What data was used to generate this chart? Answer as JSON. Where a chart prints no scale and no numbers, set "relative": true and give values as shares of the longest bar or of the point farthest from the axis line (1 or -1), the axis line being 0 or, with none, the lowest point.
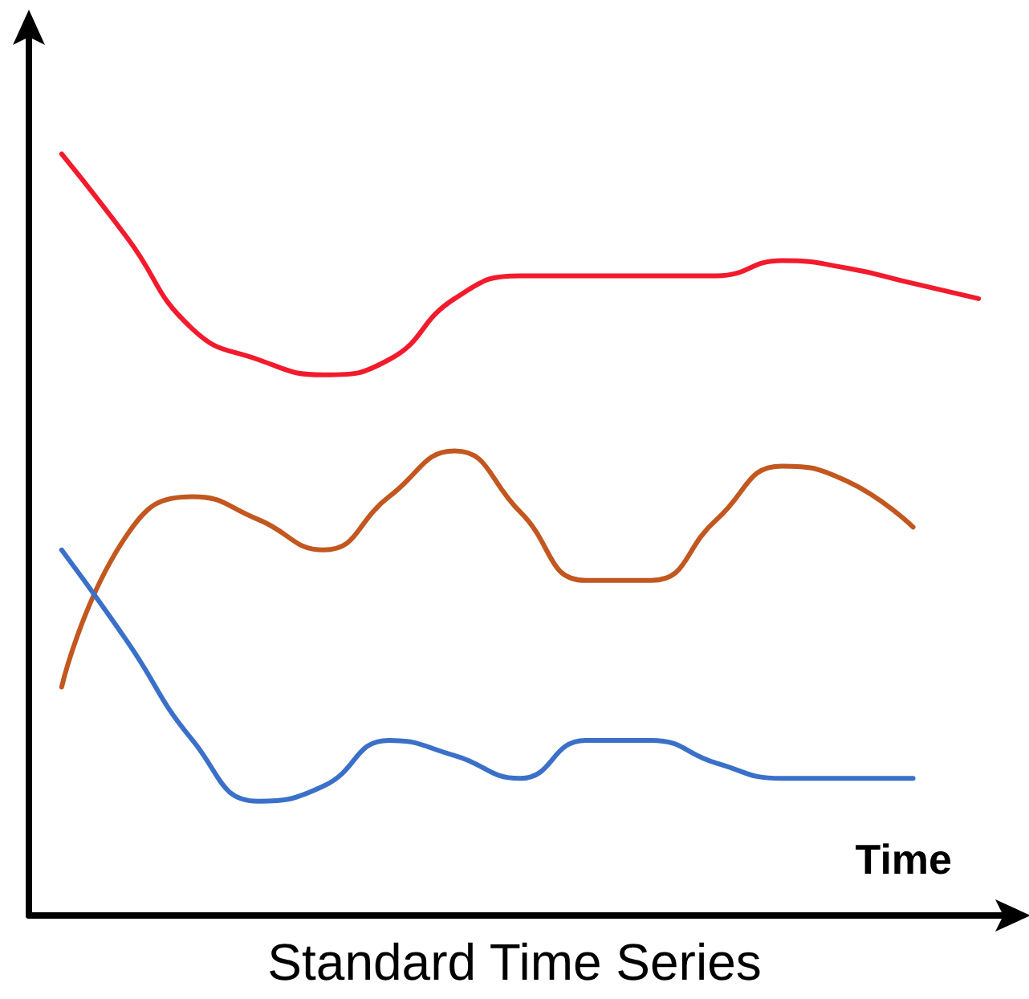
{
  "chart_data": {
    "type": "line",
    "title": "Standard Time Series",
    "xlabel": "Time",
    "relative": true,
    "grid": false,
    "marker": "none",
    "line_style": "solid",
    "categories": [
      null,
      null,
      null,
      null,
      null,
      null,
      null,
      null,
      null,
      null,
      null,
      null,
      null,
      null,
      null
    ],
    "series": [
      {
        "color": "#f21b2d",
        "values": [
          1.0,
          0.89,
          0.77,
          0.73,
          0.71,
          0.73,
          0.81,
          0.84,
          0.84,
          0.84,
          0.84,
          0.86,
          0.85,
          0.83,
          0.81
        ]
      },
      {
        "color": "#c2571f",
        "values": [
          0.3,
          0.5,
          0.55,
          0.52,
          0.48,
          0.55,
          0.61,
          0.53,
          0.44,
          0.44,
          0.52,
          0.59,
          0.57,
          0.51,
          null
        ]
      },
      {
        "color": "#3b70c9",
        "values": [
          0.48,
          0.36,
          0.23,
          0.15,
          0.17,
          0.23,
          0.21,
          0.18,
          0.23,
          0.23,
          0.2,
          0.18,
          0.18,
          0.18,
          null
        ]
      }
    ]
  }
}
